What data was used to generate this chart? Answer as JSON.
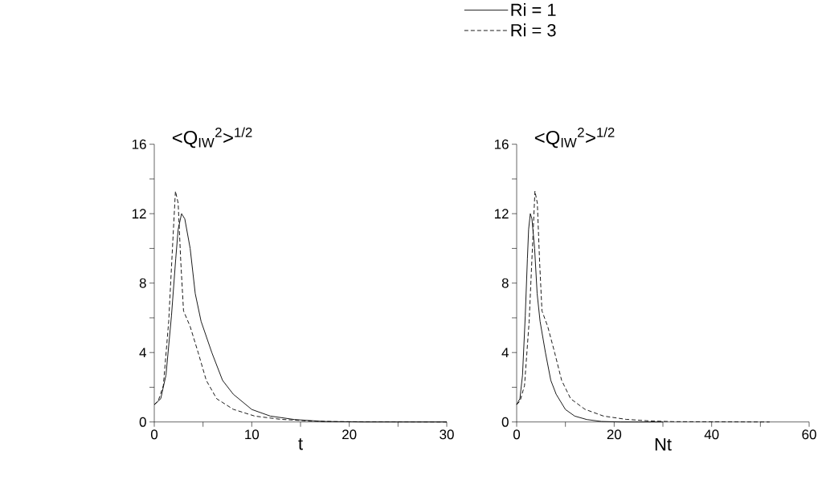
{
  "chart_data": [
    {
      "type": "line",
      "title": "<Q$_{IW}$$^{2}$>$^{1/2}$",
      "xlabel": "t",
      "legend": "top",
      "xlim": [
        0,
        30
      ],
      "xticks": [
        0,
        {
          "value": 5,
          "label": null
        },
        10,
        {
          "value": 15,
          "label": null
        },
        20,
        {
          "value": 25,
          "label": null
        },
        30
      ],
      "ylim": [
        0,
        16
      ],
      "yticks": [
        0,
        {
          "value": 2,
          "label": null
        },
        4,
        {
          "value": 6,
          "label": null
        },
        8,
        {
          "value": 10,
          "label": null
        },
        12,
        {
          "value": 14,
          "label": null
        },
        16
      ],
      "series": [
        {
          "name": "Ri = 1",
          "color": "#000000",
          "line_style": "solid",
          "x": [
            0,
            0.66,
            1.2,
            1.76,
            2.2,
            2.45,
            2.8,
            3.13,
            3.68,
            4.2,
            4.8,
            5.9,
            7.0,
            8.1,
            10,
            11.9,
            14.4,
            17.4,
            21.3,
            30
          ],
          "values": [
            1.0,
            1.34,
            2.7,
            6.1,
            9.4,
            11.1,
            12.0,
            11.7,
            10.0,
            7.4,
            5.8,
            4.0,
            2.4,
            1.6,
            0.72,
            0.34,
            0.14,
            0.03,
            0,
            0
          ]
        },
        {
          "name": "Ri = 3",
          "color": "#000000",
          "line_style": "dashed",
          "x": [
            0,
            0.4,
            0.93,
            1.48,
            1.9,
            2.17,
            2.45,
            2.72,
            3.0,
            3.68,
            4.5,
            5.33,
            6.4,
            8.1,
            10.3,
            13,
            15.8,
            18.5,
            30
          ],
          "values": [
            1.0,
            1.2,
            2.1,
            5.8,
            10.4,
            13.3,
            12.6,
            9.2,
            6.4,
            5.5,
            4.0,
            2.4,
            1.34,
            0.73,
            0.34,
            0.15,
            0.06,
            0.02,
            0
          ]
        }
      ]
    },
    {
      "type": "line",
      "title": "<Q$_{IW}$$^{2}$>$^{1/2}$",
      "xlabel": "Nt",
      "xlim": [
        0,
        60
      ],
      "xticks": [
        0,
        {
          "value": 10,
          "label": null
        },
        20,
        {
          "value": 30,
          "label": null
        },
        40,
        {
          "value": 50,
          "label": null
        },
        60
      ],
      "ylim": [
        0,
        16
      ],
      "yticks": [
        0,
        {
          "value": 2,
          "label": null
        },
        4,
        {
          "value": 6,
          "label": null
        },
        8,
        {
          "value": 10,
          "label": null
        },
        12,
        {
          "value": 14,
          "label": null
        },
        16
      ],
      "series": [
        {
          "color": "#000000",
          "line_style": "solid",
          "x": [
            0,
            0.66,
            1.2,
            1.76,
            2.2,
            2.45,
            2.8,
            3.13,
            3.68,
            4.2,
            4.8,
            5.9,
            7.0,
            8.1,
            10,
            11.9,
            14.4,
            17.4,
            21.3,
            30
          ],
          "values": [
            1.0,
            1.34,
            2.7,
            6.1,
            9.4,
            11.1,
            12.0,
            11.7,
            10.0,
            7.4,
            5.8,
            4.0,
            2.4,
            1.6,
            0.72,
            0.34,
            0.14,
            0.03,
            0,
            0
          ]
        },
        {
          "color": "#000000",
          "line_style": "dashed",
          "x": [
            0,
            0.69,
            1.61,
            2.56,
            3.29,
            3.75,
            4.24,
            4.71,
            5.19,
            6.37,
            7.79,
            9.22,
            11.07,
            14.01,
            17.82,
            22.49,
            27.33,
            32.0,
            51.9
          ],
          "values": [
            1.0,
            1.2,
            2.1,
            5.8,
            10.4,
            13.3,
            12.6,
            9.2,
            6.4,
            5.5,
            4.0,
            2.4,
            1.34,
            0.73,
            0.34,
            0.15,
            0.06,
            0.02,
            0
          ]
        }
      ]
    }
  ]
}
